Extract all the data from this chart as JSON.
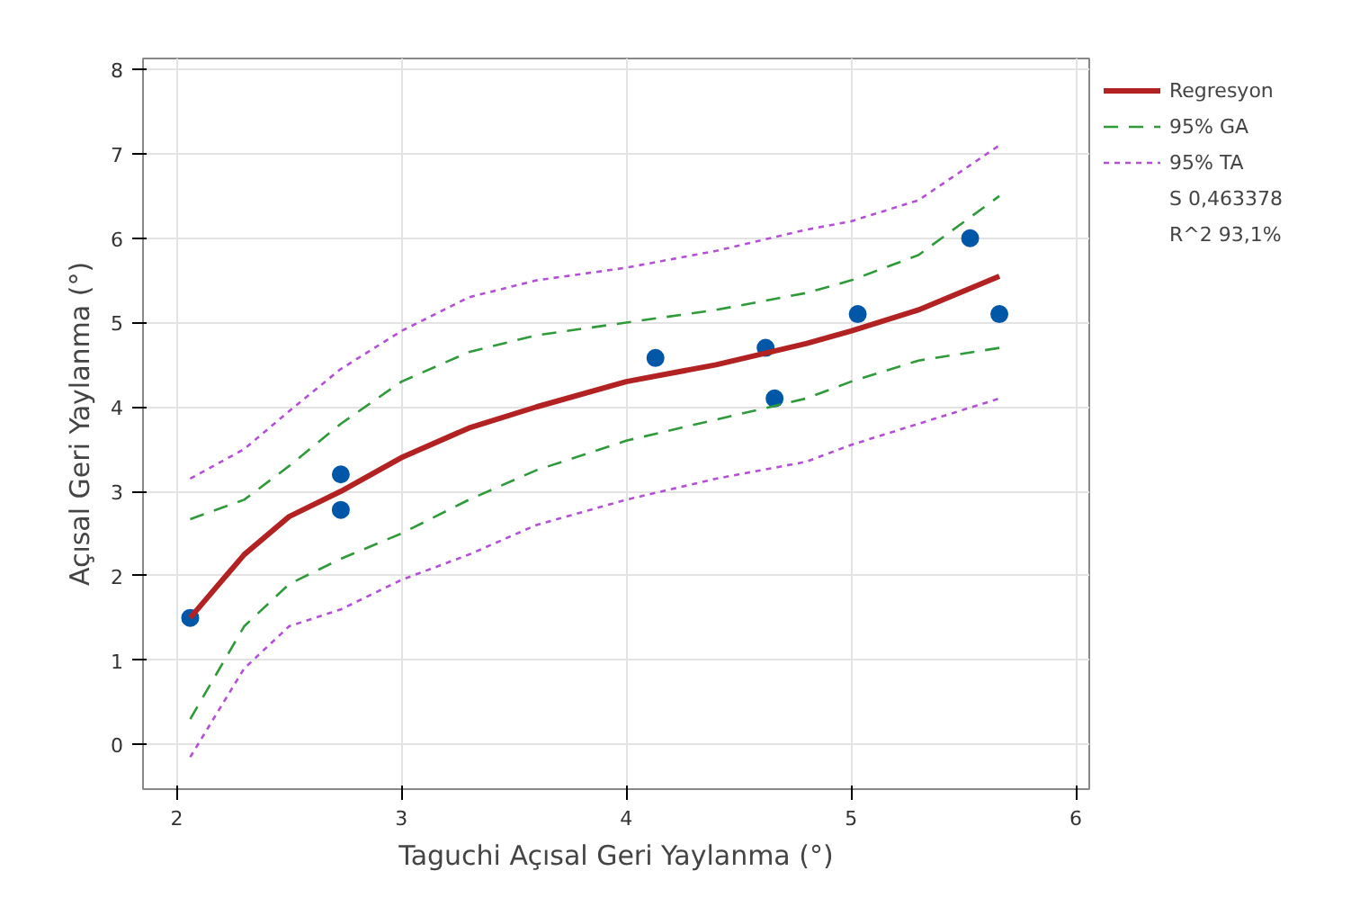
{
  "chart_data": {
    "type": "scatter",
    "xlabel": "Taguchi Açısal Geri Yaylanma (°)",
    "ylabel": "Açısal Geri Yaylanma (°)",
    "xlim": [
      1.85,
      6.06
    ],
    "ylim": [
      -0.53,
      8.13
    ],
    "xticks": [
      2,
      3,
      4,
      5,
      6
    ],
    "yticks": [
      0,
      1,
      2,
      3,
      4,
      5,
      6,
      7,
      8
    ],
    "grid": true,
    "legend": "top right",
    "annotations": [
      "S 0,463378",
      "R^2 93,1%"
    ],
    "series": [
      {
        "color": "#0057a8",
        "marker": "circle",
        "x": [
          2.06,
          2.73,
          2.73,
          4.13,
          4.62,
          4.66,
          5.03,
          5.53,
          5.66
        ],
        "values": [
          1.5,
          3.2,
          2.78,
          4.58,
          4.7,
          4.1,
          5.1,
          6.0,
          5.1
        ]
      },
      {
        "type": "line",
        "name": "Regresyon",
        "color": "#b22222",
        "line_style": "solid",
        "x": [
          2.06,
          2.3,
          2.5,
          2.73,
          3.0,
          3.3,
          3.6,
          4.0,
          4.4,
          4.8,
          5.0,
          5.3,
          5.66
        ],
        "values": [
          1.5,
          2.25,
          2.7,
          3.0,
          3.4,
          3.75,
          4.0,
          4.3,
          4.5,
          4.75,
          4.9,
          5.15,
          5.55
        ]
      },
      {
        "type": "line",
        "name": "95% GA",
        "color": "#2e9a3a",
        "line_style": "dashed",
        "x": [
          2.06,
          2.3,
          2.5,
          2.73,
          3.0,
          3.3,
          3.6,
          4.0,
          4.4,
          4.8,
          5.0,
          5.3,
          5.66
        ],
        "values": [
          2.67,
          2.9,
          3.3,
          3.8,
          4.3,
          4.65,
          4.85,
          5.0,
          5.15,
          5.35,
          5.5,
          5.8,
          6.5
        ]
      },
      {
        "type": "line",
        "color": "#2e9a3a",
        "line_style": "dashed",
        "x": [
          2.06,
          2.3,
          2.5,
          2.73,
          3.0,
          3.3,
          3.6,
          4.0,
          4.4,
          4.8,
          5.0,
          5.3,
          5.66
        ],
        "values": [
          0.3,
          1.4,
          1.9,
          2.2,
          2.5,
          2.9,
          3.25,
          3.6,
          3.85,
          4.1,
          4.3,
          4.55,
          4.7
        ]
      },
      {
        "type": "line",
        "name": "95% TA",
        "color": "#b44fd6",
        "line_style": "dotted",
        "x": [
          2.06,
          2.3,
          2.5,
          2.73,
          3.0,
          3.3,
          3.6,
          4.0,
          4.4,
          4.8,
          5.0,
          5.3,
          5.66
        ],
        "values": [
          3.15,
          3.5,
          3.95,
          4.45,
          4.9,
          5.3,
          5.5,
          5.65,
          5.85,
          6.1,
          6.2,
          6.45,
          7.1
        ]
      },
      {
        "type": "line",
        "color": "#b44fd6",
        "line_style": "dotted",
        "x": [
          2.06,
          2.3,
          2.5,
          2.73,
          3.0,
          3.3,
          3.6,
          4.0,
          4.4,
          4.8,
          5.0,
          5.3,
          5.66
        ],
        "values": [
          -0.15,
          0.9,
          1.4,
          1.6,
          1.95,
          2.25,
          2.6,
          2.9,
          3.15,
          3.35,
          3.55,
          3.8,
          4.1
        ]
      }
    ]
  }
}
